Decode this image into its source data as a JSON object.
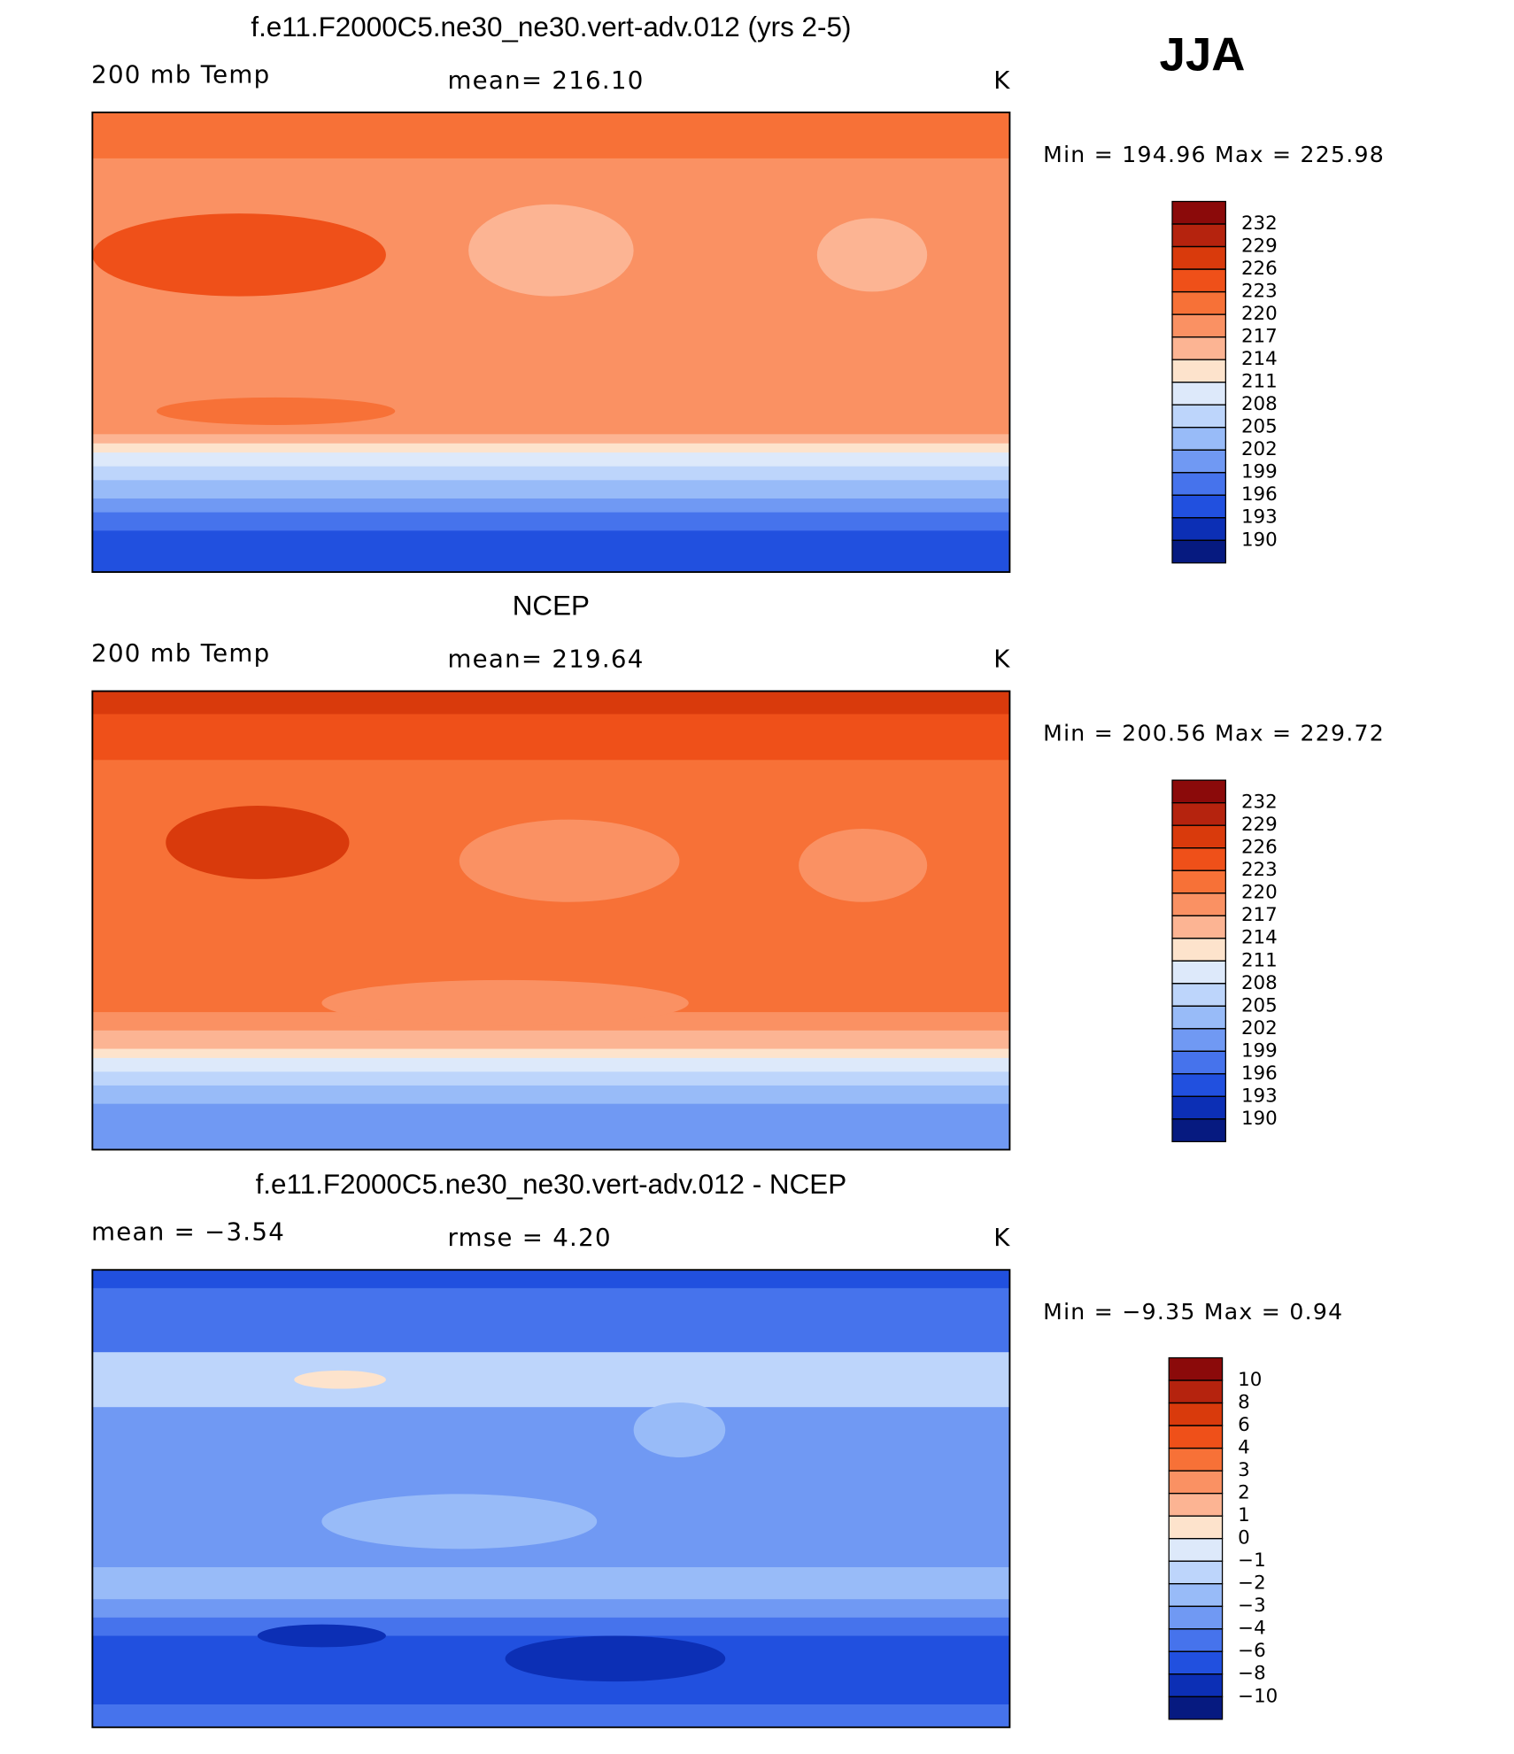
{
  "header": {
    "season": "JJA"
  },
  "chart_data": [
    {
      "type": "contour_map",
      "title": "f.e11.F2000C5.ne30_ne30.vert-adv.012 (yrs 2-5)",
      "left_label": "200 mb Temp",
      "center_label": "mean=  216.10",
      "unit": "K",
      "min_max": "Min  =  194.96  Max  =  225.98",
      "colorbar": {
        "levels": [
          232,
          229,
          226,
          223,
          220,
          217,
          214,
          211,
          208,
          205,
          202,
          199,
          196,
          193,
          190
        ],
        "colors": [
          "#8b0a0a",
          "#b5230e",
          "#d93a0c",
          "#ef5019",
          "#f77137",
          "#fa9163",
          "#fcb493",
          "#fde3cc",
          "#dde9fa",
          "#bdd5fb",
          "#98bbf8",
          "#7099f3",
          "#4673ec",
          "#2150df",
          "#0c2fb5",
          "#061a80"
        ]
      }
    },
    {
      "type": "contour_map",
      "title": "NCEP",
      "left_label": "200 mb Temp",
      "center_label": "mean=  219.64",
      "unit": "K",
      "min_max": "Min  =  200.56  Max  =  229.72",
      "colorbar": {
        "levels": [
          232,
          229,
          226,
          223,
          220,
          217,
          214,
          211,
          208,
          205,
          202,
          199,
          196,
          193,
          190
        ],
        "colors": [
          "#8b0a0a",
          "#b5230e",
          "#d93a0c",
          "#ef5019",
          "#f77137",
          "#fa9163",
          "#fcb493",
          "#fde3cc",
          "#dde9fa",
          "#bdd5fb",
          "#98bbf8",
          "#7099f3",
          "#4673ec",
          "#2150df",
          "#0c2fb5",
          "#061a80"
        ]
      }
    },
    {
      "type": "contour_map",
      "title": "f.e11.F2000C5.ne30_ne30.vert-adv.012 - NCEP",
      "left_label": "mean =    −3.54",
      "center_label": "rmse =    4.20",
      "unit": "K",
      "min_max": "Min  =    −9.35  Max  =    0.94",
      "colorbar": {
        "levels": [
          10,
          8,
          6,
          4,
          3,
          2,
          1,
          0,
          {
            "value": -1,
            "label": "−1"
          },
          {
            "value": -2,
            "label": "−2"
          },
          {
            "value": -3,
            "label": "−3"
          },
          {
            "value": -4,
            "label": "−4"
          },
          {
            "value": -6,
            "label": "−6"
          },
          {
            "value": -8,
            "label": "−8"
          },
          {
            "value": -10,
            "label": "−10"
          }
        ],
        "colors": [
          "#8b0a0a",
          "#b5230e",
          "#d93a0c",
          "#ef5019",
          "#f77137",
          "#fa9163",
          "#fcb493",
          "#fde3cc",
          "#dde9fa",
          "#bdd5fb",
          "#98bbf8",
          "#7099f3",
          "#4673ec",
          "#2150df",
          "#0c2fb5",
          "#061a80"
        ]
      }
    }
  ]
}
